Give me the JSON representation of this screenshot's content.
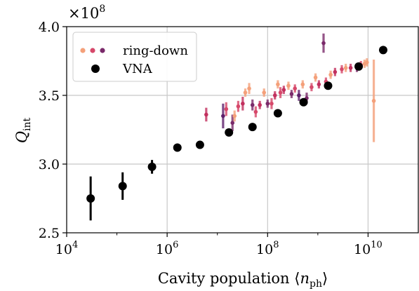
{
  "chart_data": {
    "type": "scatter",
    "title": "",
    "xlabel": "Cavity population ⟨n_ph⟩",
    "ylabel": "Q_int",
    "y_multiplier": "×10^8",
    "xscale": "log",
    "xlim_log10": [
      4.0,
      11.0
    ],
    "ylim": [
      2.5,
      4.0
    ],
    "xtick_labels": [
      {
        "base": "10",
        "exp": "4"
      },
      {
        "base": "10",
        "exp": "6"
      },
      {
        "base": "10",
        "exp": "8"
      },
      {
        "base": "10",
        "exp": "10"
      }
    ],
    "ytick_labels": [
      "2.5",
      "3.0",
      "3.5",
      "4.0"
    ],
    "grid": true,
    "legend_position": "top-left",
    "series": [
      {
        "name": "ring-down",
        "marker": "small-dot",
        "note_colors": [
          "#f4a07a",
          "#d6486a",
          "#7a2a6a",
          "#4a1a5a"
        ],
        "points": [
          {
            "x": 6000000.0,
            "y": 3.36,
            "err": 0.05,
            "color": "#c2305e"
          },
          {
            "x": 13000000.0,
            "y": 3.35,
            "err": 0.09,
            "color": "#5e1f6b"
          },
          {
            "x": 15000000.0,
            "y": 3.4,
            "err": 0.05,
            "color": "#d6486a"
          },
          {
            "x": 20000000.0,
            "y": 3.3,
            "err": 0.06,
            "color": "#7a2a6a"
          },
          {
            "x": 22000000.0,
            "y": 3.35,
            "err": 0.04,
            "color": "#f4a07a"
          },
          {
            "x": 26000000.0,
            "y": 3.42,
            "err": 0.04,
            "color": "#d6486a"
          },
          {
            "x": 32000000.0,
            "y": 3.44,
            "err": 0.05,
            "color": "#c2305e"
          },
          {
            "x": 36000000.0,
            "y": 3.52,
            "err": 0.03,
            "color": "#f4a07a"
          },
          {
            "x": 43000000.0,
            "y": 3.55,
            "err": 0.04,
            "color": "#f4a07a"
          },
          {
            "x": 50000000.0,
            "y": 3.43,
            "err": 0.04,
            "color": "#7a2a6a"
          },
          {
            "x": 58000000.0,
            "y": 3.38,
            "err": 0.04,
            "color": "#d6486a"
          },
          {
            "x": 70000000.0,
            "y": 3.43,
            "err": 0.03,
            "color": "#c2305e"
          },
          {
            "x": 85000000.0,
            "y": 3.52,
            "err": 0.03,
            "color": "#f4a07a"
          },
          {
            "x": 100000000.0,
            "y": 3.44,
            "err": 0.03,
            "color": "#7a2a6a"
          },
          {
            "x": 120000000.0,
            "y": 3.44,
            "err": 0.04,
            "color": "#d6486a"
          },
          {
            "x": 140000000.0,
            "y": 3.5,
            "err": 0.03,
            "color": "#c2305e"
          },
          {
            "x": 160000000.0,
            "y": 3.58,
            "err": 0.03,
            "color": "#f4a07a"
          },
          {
            "x": 180000000.0,
            "y": 3.52,
            "err": 0.04,
            "color": "#d6486a"
          },
          {
            "x": 210000000.0,
            "y": 3.54,
            "err": 0.03,
            "color": "#c2305e"
          },
          {
            "x": 260000000.0,
            "y": 3.57,
            "err": 0.03,
            "color": "#f4a07a"
          },
          {
            "x": 300000000.0,
            "y": 3.51,
            "err": 0.03,
            "color": "#7a2a6a"
          },
          {
            "x": 350000000.0,
            "y": 3.55,
            "err": 0.03,
            "color": "#d6486a"
          },
          {
            "x": 420000000.0,
            "y": 3.5,
            "err": 0.04,
            "color": "#5e1f6b"
          },
          {
            "x": 500000000.0,
            "y": 3.58,
            "err": 0.03,
            "color": "#f4a07a"
          },
          {
            "x": 600000000.0,
            "y": 3.48,
            "err": 0.04,
            "color": "#7a2a6a"
          },
          {
            "x": 750000000.0,
            "y": 3.56,
            "err": 0.03,
            "color": "#d6486a"
          },
          {
            "x": 900000000.0,
            "y": 3.63,
            "err": 0.03,
            "color": "#f4a07a"
          },
          {
            "x": 1050000000.0,
            "y": 3.58,
            "err": 0.03,
            "color": "#c2305e"
          },
          {
            "x": 1300000000.0,
            "y": 3.88,
            "err": 0.07,
            "color": "#7a2a6a"
          },
          {
            "x": 1450000000.0,
            "y": 3.6,
            "err": 0.03,
            "color": "#d6486a"
          },
          {
            "x": 1800000000.0,
            "y": 3.65,
            "err": 0.03,
            "color": "#f4a07a"
          },
          {
            "x": 2200000000.0,
            "y": 3.67,
            "err": 0.03,
            "color": "#c2305e"
          },
          {
            "x": 3000000000.0,
            "y": 3.69,
            "err": 0.03,
            "color": "#d6486a"
          },
          {
            "x": 3600000000.0,
            "y": 3.7,
            "err": 0.03,
            "color": "#f4a07a"
          },
          {
            "x": 4500000000.0,
            "y": 3.7,
            "err": 0.03,
            "color": "#c2305e"
          },
          {
            "x": 6000000000.0,
            "y": 3.7,
            "err": 0.03,
            "color": "#7a2a6a"
          },
          {
            "x": 7200000000.0,
            "y": 3.72,
            "err": 0.03,
            "color": "#d6486a"
          },
          {
            "x": 8500000000.0,
            "y": 3.73,
            "err": 0.03,
            "color": "#f4a07a"
          },
          {
            "x": 9500000000.0,
            "y": 3.74,
            "err": 0.03,
            "color": "#f4a07a"
          },
          {
            "x": 13000000000.0,
            "y": 3.46,
            "err": 0.3,
            "color": "#f4a07a"
          }
        ]
      },
      {
        "name": "VNA",
        "marker": "large-dot",
        "color": "#000000",
        "points": [
          {
            "x": 30000.0,
            "y": 2.75,
            "err": 0.16
          },
          {
            "x": 130000.0,
            "y": 2.84,
            "err": 0.1
          },
          {
            "x": 500000.0,
            "y": 2.98,
            "err": 0.05
          },
          {
            "x": 1600000.0,
            "y": 3.12,
            "err": 0
          },
          {
            "x": 4500000.0,
            "y": 3.14,
            "err": 0
          },
          {
            "x": 17000000.0,
            "y": 3.23,
            "err": 0
          },
          {
            "x": 50000000.0,
            "y": 3.27,
            "err": 0
          },
          {
            "x": 160000000.0,
            "y": 3.37,
            "err": 0
          },
          {
            "x": 520000000.0,
            "y": 3.45,
            "err": 0
          },
          {
            "x": 1600000000.0,
            "y": 3.57,
            "err": 0
          },
          {
            "x": 6500000000.0,
            "y": 3.71,
            "err": 0
          },
          {
            "x": 20000000000.0,
            "y": 3.83,
            "err": 0
          }
        ]
      }
    ]
  }
}
